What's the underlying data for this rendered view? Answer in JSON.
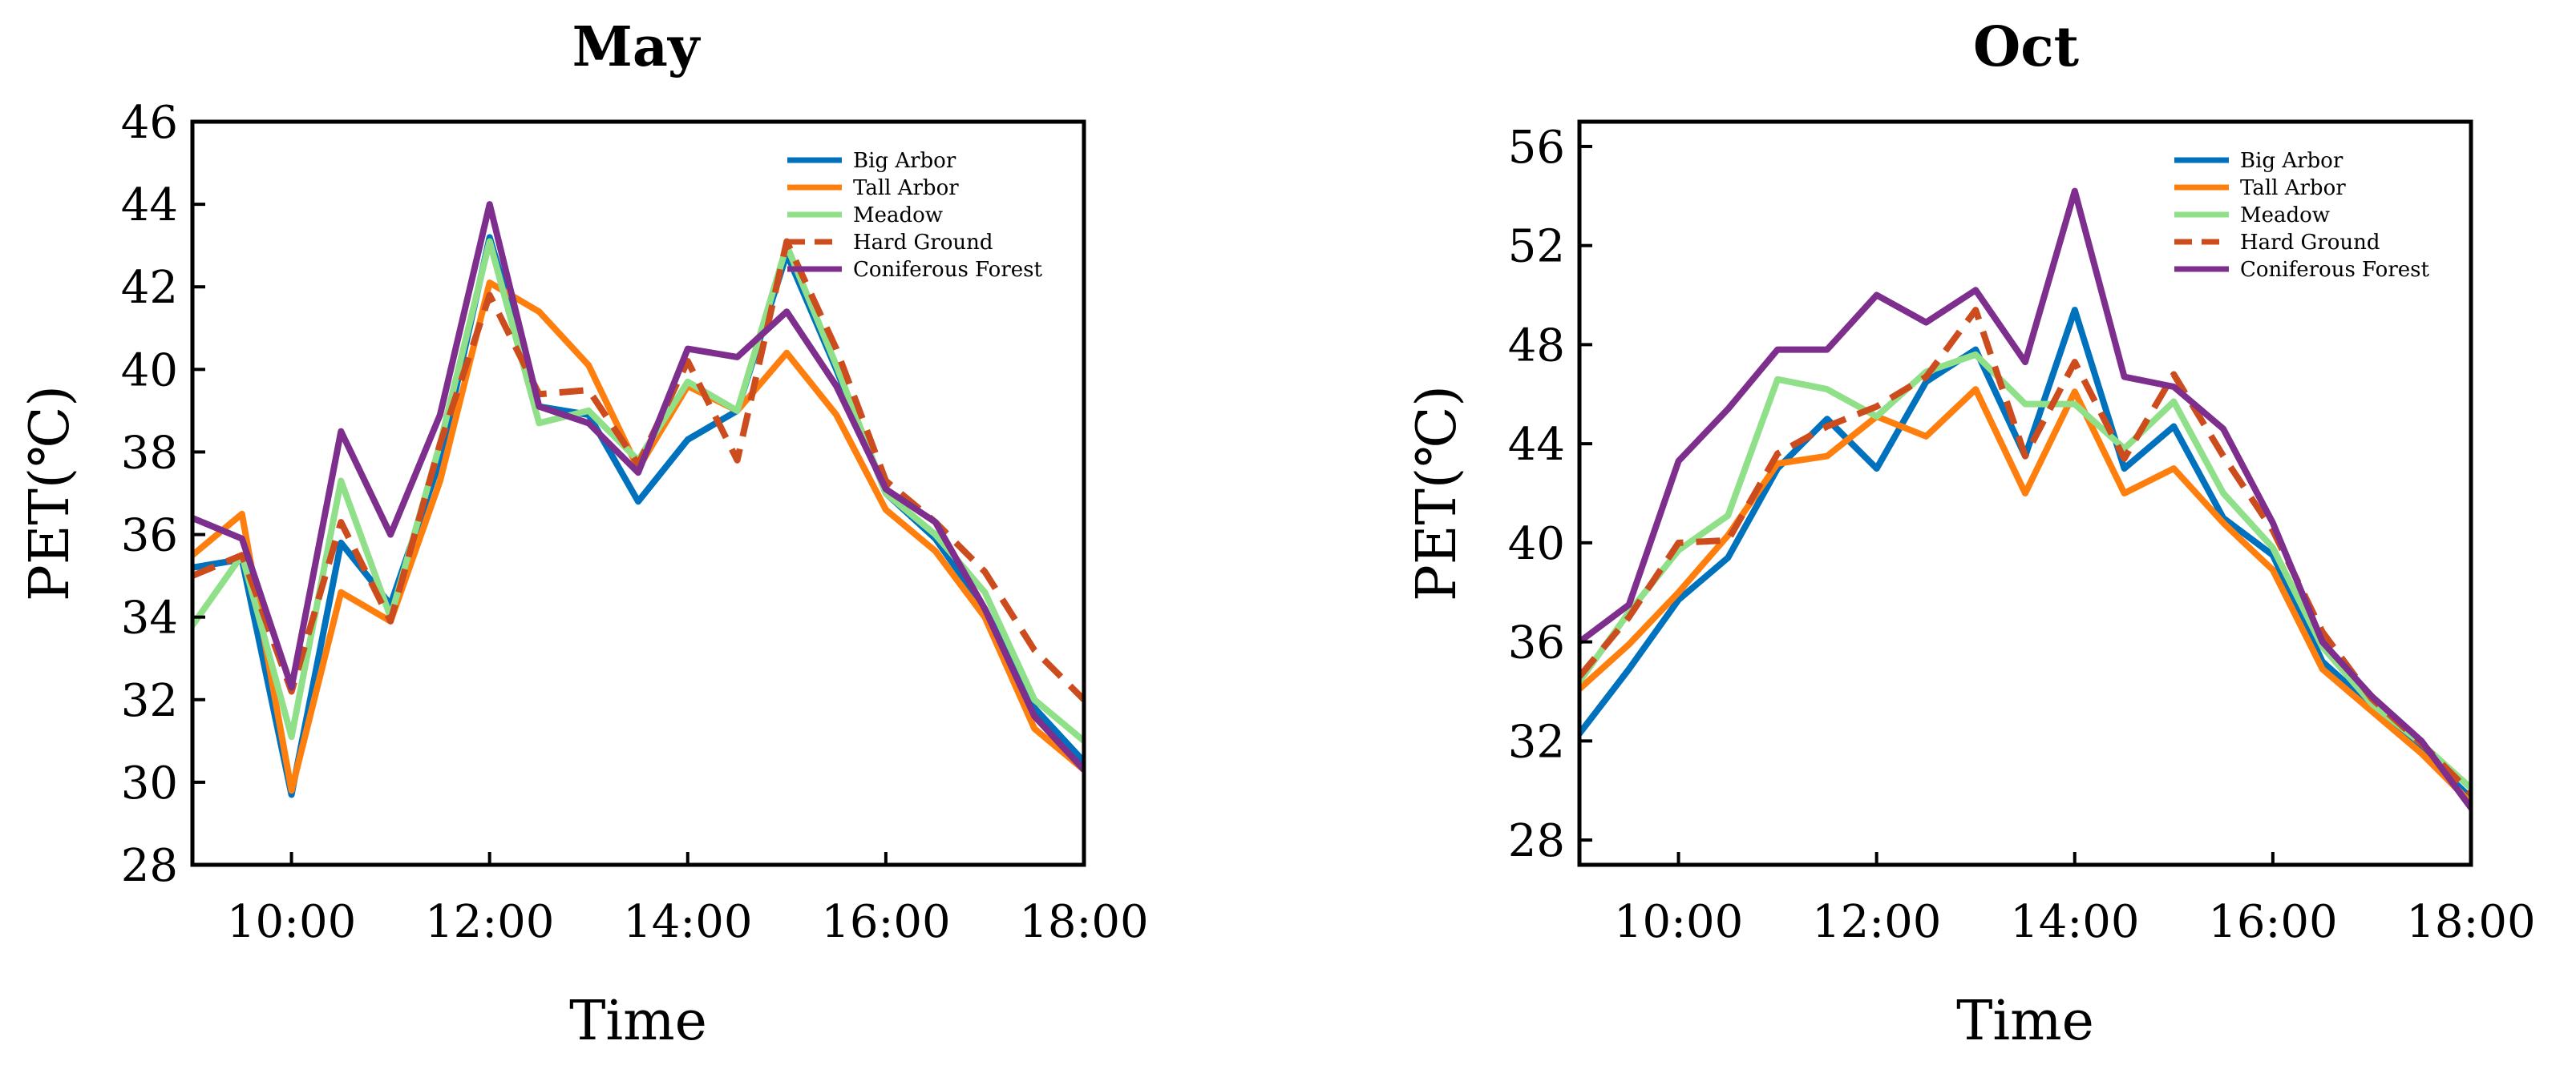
{
  "chart_data": [
    {
      "type": "line",
      "title": "May",
      "xlabel": "Time",
      "ylabel": "PET(℃)",
      "xlim": [
        9,
        18
      ],
      "ylim": [
        28,
        46
      ],
      "xticks": [
        10,
        12,
        14,
        16,
        18
      ],
      "xtick_labels": [
        "10:00",
        "12:00",
        "14:00",
        "16:00",
        "18:00"
      ],
      "yticks": [
        28,
        30,
        32,
        34,
        36,
        38,
        40,
        42,
        44,
        46
      ],
      "ytick_labels": [
        "28",
        "30",
        "32",
        "34",
        "36",
        "38",
        "40",
        "42",
        "44",
        "46"
      ],
      "legend_position": "top-right",
      "x": [
        9,
        9.5,
        10,
        10.5,
        11,
        11.5,
        12,
        12.5,
        13,
        13.5,
        14,
        14.5,
        15,
        15.5,
        16,
        16.5,
        17,
        17.5,
        18
      ],
      "series": [
        {
          "name": "Big Arbor",
          "color": "#0072BD",
          "dash": false,
          "values": [
            35.2,
            35.4,
            29.7,
            35.8,
            34.3,
            37.8,
            43.2,
            39.1,
            38.9,
            36.8,
            38.3,
            39.0,
            42.8,
            40.0,
            37.0,
            35.9,
            34.2,
            31.8,
            30.5
          ]
        },
        {
          "name": "Tall Arbor",
          "color": "#FF7F0E",
          "dash": false,
          "values": [
            35.5,
            36.5,
            29.8,
            34.6,
            33.9,
            37.3,
            42.1,
            41.4,
            40.1,
            37.6,
            39.6,
            39.0,
            40.4,
            38.9,
            36.6,
            35.6,
            34.0,
            31.3,
            30.3
          ]
        },
        {
          "name": "Meadow",
          "color": "#90E08A",
          "dash": false,
          "values": [
            33.8,
            35.5,
            31.1,
            37.3,
            34.0,
            38.2,
            43.1,
            38.7,
            39.0,
            37.8,
            39.7,
            39.0,
            43.0,
            40.1,
            37.0,
            36.0,
            34.6,
            32.0,
            31.0
          ]
        },
        {
          "name": "Hard Ground",
          "color": "#CC4C1E",
          "dash": true,
          "values": [
            35.0,
            35.5,
            32.2,
            36.3,
            33.9,
            38.2,
            41.8,
            39.4,
            39.5,
            37.7,
            40.2,
            37.8,
            43.1,
            40.5,
            37.3,
            36.3,
            35.1,
            33.2,
            32.0
          ]
        },
        {
          "name": "Coniferous Forest",
          "color": "#7E2F8E",
          "dash": false,
          "values": [
            36.4,
            35.9,
            32.3,
            38.5,
            36.0,
            38.9,
            44.0,
            39.1,
            38.7,
            37.5,
            40.5,
            40.3,
            41.4,
            39.6,
            37.1,
            36.3,
            34.2,
            31.6,
            30.3
          ]
        }
      ]
    },
    {
      "type": "line",
      "title": "Oct",
      "xlabel": "Time",
      "ylabel": "PET(℃)",
      "xlim": [
        9,
        18
      ],
      "ylim": [
        27,
        57
      ],
      "xticks": [
        10,
        12,
        14,
        16,
        18
      ],
      "xtick_labels": [
        "10:00",
        "12:00",
        "14:00",
        "16:00",
        "18:00"
      ],
      "yticks": [
        28,
        32,
        36,
        40,
        44,
        48,
        52,
        56
      ],
      "ytick_labels": [
        "28",
        "32",
        "36",
        "40",
        "44",
        "48",
        "52",
        "56"
      ],
      "legend_position": "top-right",
      "x": [
        9,
        9.5,
        10,
        10.5,
        11,
        11.5,
        12,
        12.5,
        13,
        13.5,
        14,
        14.5,
        15,
        15.5,
        16,
        16.5,
        17,
        17.5,
        18
      ],
      "series": [
        {
          "name": "Big Arbor",
          "color": "#0072BD",
          "dash": false,
          "values": [
            32.3,
            34.9,
            37.7,
            39.4,
            43.0,
            45.0,
            43.0,
            46.5,
            47.8,
            43.5,
            49.4,
            43.0,
            44.7,
            41.0,
            39.5,
            35.2,
            33.4,
            31.6,
            29.7
          ]
        },
        {
          "name": "Tall Arbor",
          "color": "#FF7F0E",
          "dash": false,
          "values": [
            34.1,
            35.9,
            38.0,
            40.3,
            43.2,
            43.5,
            45.1,
            44.3,
            46.2,
            42.0,
            46.1,
            42.0,
            43.0,
            40.8,
            38.9,
            34.9,
            33.2,
            31.5,
            29.5
          ]
        },
        {
          "name": "Meadow",
          "color": "#90E08A",
          "dash": false,
          "values": [
            34.4,
            37.2,
            39.7,
            41.1,
            46.6,
            46.2,
            45.1,
            46.9,
            47.6,
            45.6,
            45.6,
            43.8,
            45.7,
            42.0,
            39.8,
            35.8,
            33.5,
            31.9,
            30.1
          ]
        },
        {
          "name": "Hard Ground",
          "color": "#CC4C1E",
          "dash": true,
          "values": [
            34.6,
            37.0,
            40.0,
            40.1,
            43.6,
            44.7,
            45.5,
            46.7,
            49.4,
            43.5,
            47.3,
            43.4,
            46.8,
            43.5,
            40.5,
            36.4,
            33.7,
            31.9,
            29.9
          ]
        },
        {
          "name": "Coniferous Forest",
          "color": "#7E2F8E",
          "dash": false,
          "values": [
            36.0,
            37.5,
            43.3,
            45.4,
            47.8,
            47.8,
            50.0,
            48.9,
            50.2,
            47.3,
            54.2,
            46.7,
            46.3,
            44.6,
            40.8,
            36.0,
            33.8,
            32.0,
            29.3
          ]
        }
      ]
    }
  ]
}
